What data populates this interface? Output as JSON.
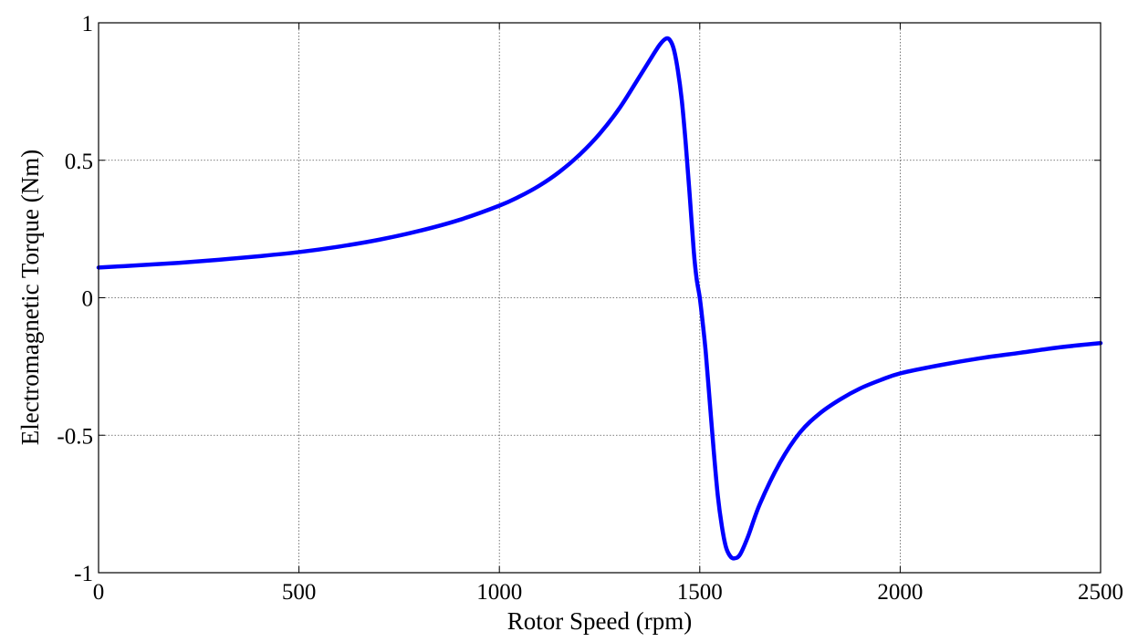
{
  "chart_data": {
    "type": "line",
    "title": "",
    "xlabel": "Rotor Speed (rpm)",
    "ylabel": "Electromagnetic Torque (Nm)",
    "xlim": [
      0,
      2500
    ],
    "ylim": [
      -1,
      1
    ],
    "xticks": [
      0,
      500,
      1000,
      1500,
      2000,
      2500
    ],
    "xtick_labels": [
      "0",
      "500",
      "1000",
      "1500",
      "2000",
      "2500"
    ],
    "yticks": [
      1,
      0.5,
      0,
      -0.5,
      -1
    ],
    "ytick_labels": [
      "1",
      "0.5",
      "0",
      "-0.5",
      "-1"
    ],
    "grid": true,
    "series": [
      {
        "color": "#0000ff",
        "x": [
          0,
          100,
          200,
          300,
          400,
          500,
          600,
          700,
          800,
          900,
          1000,
          1050,
          1100,
          1150,
          1200,
          1250,
          1300,
          1350,
          1380,
          1400,
          1415,
          1425,
          1435,
          1445,
          1455,
          1465,
          1475,
          1485,
          1492,
          1500,
          1508,
          1515,
          1525,
          1535,
          1545,
          1555,
          1565,
          1575,
          1585,
          1600,
          1620,
          1650,
          1700,
          1750,
          1800,
          1850,
          1900,
          1950,
          2000,
          2100,
          2200,
          2300,
          2400,
          2500
        ],
        "y": [
          0.11,
          0.118,
          0.127,
          0.138,
          0.151,
          0.166,
          0.186,
          0.211,
          0.243,
          0.283,
          0.335,
          0.368,
          0.408,
          0.458,
          0.52,
          0.596,
          0.69,
          0.805,
          0.875,
          0.92,
          0.942,
          0.938,
          0.905,
          0.83,
          0.72,
          0.56,
          0.37,
          0.17,
          0.07,
          0.0,
          -0.1,
          -0.2,
          -0.38,
          -0.56,
          -0.72,
          -0.83,
          -0.905,
          -0.938,
          -0.948,
          -0.935,
          -0.87,
          -0.75,
          -0.6,
          -0.49,
          -0.42,
          -0.37,
          -0.33,
          -0.3,
          -0.275,
          -0.245,
          -0.22,
          -0.2,
          -0.18,
          -0.165
        ]
      }
    ]
  }
}
